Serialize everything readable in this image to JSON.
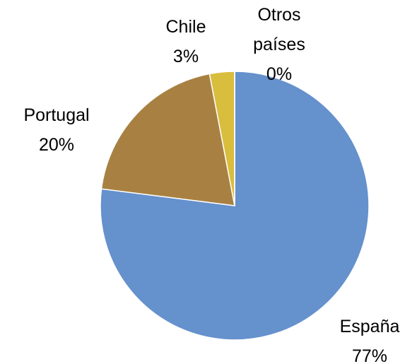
{
  "chart_data": {
    "type": "pie",
    "categories": [
      "España",
      "Portugal",
      "Chile",
      "Otros países"
    ],
    "values": [
      77,
      20,
      3,
      0
    ],
    "value_labels": [
      "77%",
      "20%",
      "3%",
      "0%"
    ],
    "colors": [
      "#6591cd",
      "#a88142",
      "#d9bd3d",
      "#4f9a8e"
    ]
  }
}
